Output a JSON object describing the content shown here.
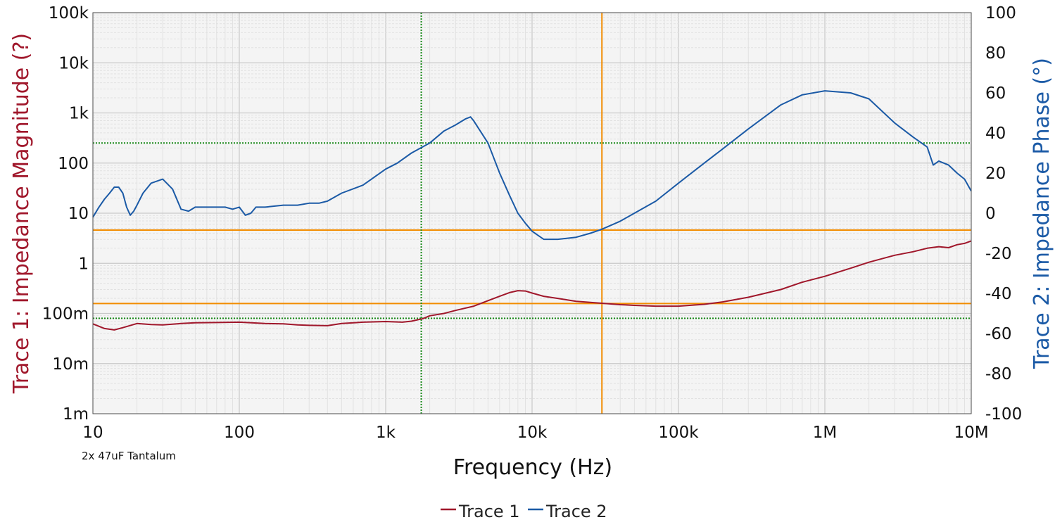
{
  "chart_data": {
    "type": "line",
    "title": "",
    "xlabel": "Frequency (Hz)",
    "ylabel_left": "Trace 1: Impedance Magnitude (?)",
    "ylabel_right": "Trace 2: Impedance Phase (°)",
    "annotation": "2x 47uF Tantalum",
    "x_scale": "log",
    "xlim": [
      10,
      10000000
    ],
    "x_ticks": [
      {
        "value": 10,
        "label": "10"
      },
      {
        "value": 100,
        "label": "100"
      },
      {
        "value": 1000,
        "label": "1k"
      },
      {
        "value": 10000,
        "label": "10k"
      },
      {
        "value": 100000,
        "label": "100k"
      },
      {
        "value": 1000000,
        "label": "1M"
      },
      {
        "value": 10000000,
        "label": "10M"
      }
    ],
    "y_left_scale": "log",
    "y_left_lim": [
      0.001,
      100000
    ],
    "y_left_ticks": [
      {
        "value": 100000,
        "label": "100k"
      },
      {
        "value": 10000,
        "label": "10k"
      },
      {
        "value": 1000,
        "label": "1k"
      },
      {
        "value": 100,
        "label": "100"
      },
      {
        "value": 10,
        "label": "10"
      },
      {
        "value": 1,
        "label": "1"
      },
      {
        "value": 0.1,
        "label": "100m"
      },
      {
        "value": 0.01,
        "label": "10m"
      },
      {
        "value": 0.001,
        "label": "1m"
      }
    ],
    "y_right_lim": [
      -100,
      100
    ],
    "y_right_ticks": [
      {
        "value": 100,
        "label": "100"
      },
      {
        "value": 80,
        "label": "80"
      },
      {
        "value": 60,
        "label": "60"
      },
      {
        "value": 40,
        "label": "40"
      },
      {
        "value": 20,
        "label": "20"
      },
      {
        "value": 0,
        "label": "0"
      },
      {
        "value": -20,
        "label": "-20"
      },
      {
        "value": -40,
        "label": "-40"
      },
      {
        "value": -60,
        "label": "-60"
      },
      {
        "value": -80,
        "label": "-80"
      },
      {
        "value": -100,
        "label": "-100"
      }
    ],
    "grid": true,
    "legend_position": "bottom-center",
    "series": [
      {
        "name": "Trace 1",
        "axis": "left",
        "color": "#a0172b",
        "x": [
          10,
          12,
          14,
          16,
          20,
          25,
          30,
          40,
          50,
          70,
          100,
          150,
          200,
          250,
          300,
          400,
          500,
          700,
          1000,
          1300,
          1500,
          1800,
          2000,
          2500,
          3000,
          4000,
          5000,
          6000,
          7000,
          8000,
          9000,
          10000,
          12000,
          15000,
          20000,
          30000,
          40000,
          50000,
          70000,
          100000,
          150000,
          200000,
          300000,
          500000,
          700000,
          1000000,
          1500000,
          2000000,
          3000000,
          4000000,
          5000000,
          6000000,
          7000000,
          8000000,
          9000000,
          10000000
        ],
        "y": [
          0.062,
          0.05,
          0.047,
          0.052,
          0.063,
          0.06,
          0.059,
          0.063,
          0.065,
          0.066,
          0.067,
          0.063,
          0.062,
          0.059,
          0.058,
          0.057,
          0.063,
          0.067,
          0.069,
          0.067,
          0.07,
          0.079,
          0.09,
          0.1,
          0.115,
          0.14,
          0.18,
          0.22,
          0.26,
          0.285,
          0.28,
          0.255,
          0.22,
          0.2,
          0.175,
          0.16,
          0.15,
          0.145,
          0.14,
          0.14,
          0.152,
          0.17,
          0.21,
          0.3,
          0.42,
          0.55,
          0.8,
          1.05,
          1.45,
          1.7,
          2.0,
          2.15,
          2.05,
          2.35,
          2.5,
          2.8
        ]
      },
      {
        "name": "Trace 2",
        "axis": "right",
        "color": "#1b5aa6",
        "x": [
          10,
          11,
          12,
          13,
          14,
          15,
          16,
          17,
          18,
          19,
          20,
          22,
          25,
          30,
          35,
          40,
          45,
          50,
          60,
          70,
          80,
          90,
          100,
          110,
          120,
          130,
          150,
          200,
          250,
          300,
          350,
          400,
          500,
          700,
          1000,
          1200,
          1500,
          2000,
          2500,
          3000,
          3500,
          3800,
          4000,
          5000,
          6000,
          7000,
          8000,
          9000,
          10000,
          12000,
          15000,
          20000,
          25000,
          30000,
          40000,
          50000,
          70000,
          100000,
          150000,
          200000,
          300000,
          500000,
          700000,
          1000000,
          1500000,
          2000000,
          3000000,
          4000000,
          5000000,
          5500000,
          6000000,
          7000000,
          8000000,
          9000000,
          10000000
        ],
        "y": [
          -2,
          3,
          7,
          10,
          13,
          13,
          10,
          3,
          -1,
          1,
          4,
          10,
          15,
          17,
          12,
          2,
          1,
          3,
          3,
          3,
          3,
          2,
          3,
          -1,
          0,
          3,
          3,
          4,
          4,
          5,
          5,
          6,
          10,
          14,
          22,
          25,
          30,
          35,
          41,
          44,
          47,
          48,
          46,
          35,
          20,
          9,
          0,
          -5,
          -9,
          -13,
          -13,
          -12,
          -10,
          -8,
          -4,
          0,
          6,
          15,
          25,
          32,
          42,
          54,
          59,
          61,
          60,
          57,
          45,
          38,
          33,
          24,
          26,
          24,
          20,
          17,
          11
        ]
      }
    ],
    "cursors": {
      "vertical_solid_x": 30000,
      "vertical_dotted_x": 1750,
      "horizontal_solid_left": [
        4.6,
        0.158
      ],
      "horizontal_dotted_left": [
        0.08
      ],
      "horizontal_dotted_right": [
        35
      ]
    },
    "colors": {
      "trace1": "#a0172b",
      "trace2": "#1b5aa6",
      "cursor_solid": "#f28c00",
      "cursor_dotted": "#1a8a1a",
      "plot_background": "#f4f4f4",
      "grid": "#c9c9c9",
      "grid_minor": "#e1e1e1"
    }
  }
}
